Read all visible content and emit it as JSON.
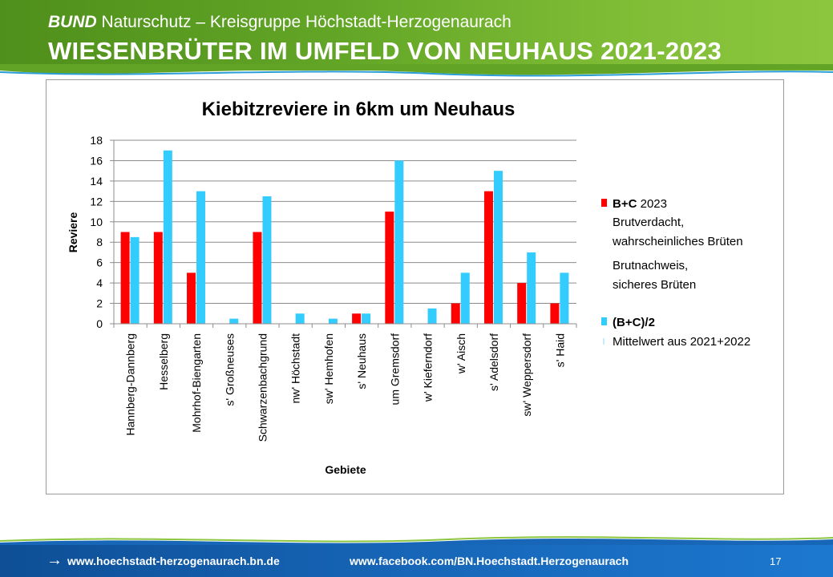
{
  "header": {
    "org_bold": "BUND",
    "org_rest": " Naturschutz – Kreisgruppe Höchstadt-Herzogenaurach",
    "title": "WIESENBRÜTER IM UMFELD VON NEUHAUS 2021-2023"
  },
  "footer": {
    "website": "www.hoechstadt-herzogenaurach.bn.de",
    "facebook": "www.facebook.com/BN.Hoechstadt.Herzogenaurach",
    "page_number": "17"
  },
  "colors": {
    "red": "#ff0000",
    "blue": "#33ccff",
    "header_green": "#62a526",
    "footer_blue": "#1766b8"
  },
  "chart_data": {
    "type": "bar",
    "title": "Kiebitzreviere in 6km um Neuhaus",
    "xlabel": "Gebiete",
    "ylabel": "Reviere",
    "ylim": [
      0,
      18
    ],
    "yticks": [
      0,
      2,
      4,
      6,
      8,
      10,
      12,
      14,
      16,
      18
    ],
    "grid": true,
    "legend_position": "right",
    "categories": [
      "Hannberg-Dannberg",
      "Hesselberg",
      "Mohrhof-Biengarten",
      "s' Großneuses",
      "Schwarzenbachgrund",
      "nw' Höchstadt",
      "sw' Hemhofen",
      "s' Neuhaus",
      "um Gremsdorf",
      "w' Kieferndorf",
      "w' Aisch",
      "s' Adelsdorf",
      "sw' Weppersdorf",
      "s' Haid"
    ],
    "series": [
      {
        "name": "B+C 2023",
        "color": "#ff0000",
        "values": [
          9,
          9,
          5,
          0,
          9,
          0,
          0,
          1,
          11,
          0,
          2,
          13,
          4,
          2
        ]
      },
      {
        "name": "(B+C)/2",
        "color": "#33ccff",
        "values": [
          8.5,
          17,
          13,
          0.5,
          12.5,
          1,
          0.5,
          1,
          16,
          1.5,
          5,
          15,
          7,
          5
        ]
      }
    ],
    "legend": {
      "red_bold": "B+C",
      "red_rest": " 2023",
      "red_line2": "Brutverdacht,",
      "red_line3": "wahrscheinliches Brüten",
      "red_line4": "Brutnachweis,",
      "red_line5": "sicheres Brüten",
      "blue_bold": "(B+C)/2",
      "blue_line2": "Mittelwert aus 2021+2022"
    }
  }
}
